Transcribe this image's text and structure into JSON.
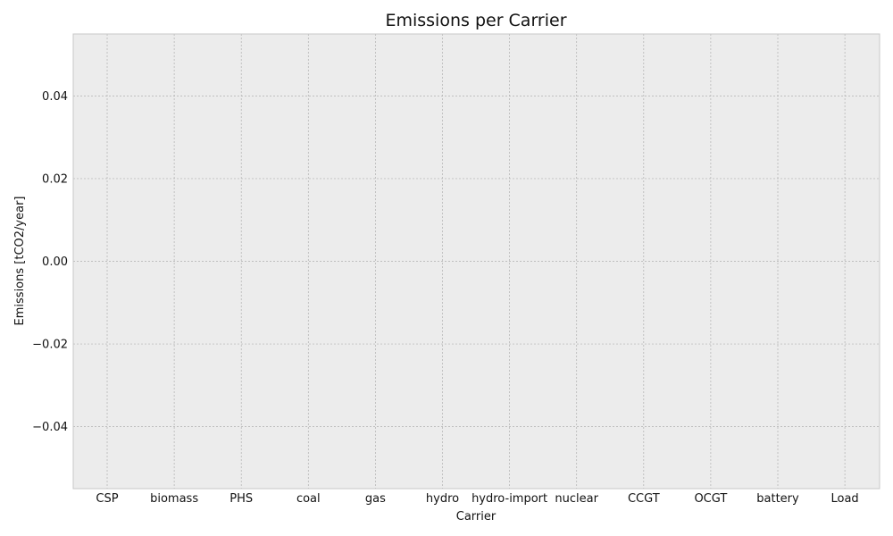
{
  "chart_data": {
    "type": "bar",
    "title": "Emissions per Carrier",
    "xlabel": "Carrier",
    "ylabel": "Emissions [tCO2/year]",
    "categories": [
      "CSP",
      "biomass",
      "PHS",
      "coal",
      "gas",
      "hydro",
      "hydro-import",
      "nuclear",
      "CCGT",
      "OCGT",
      "battery",
      "Load"
    ],
    "values": [
      0,
      0,
      0,
      0,
      0,
      0,
      0,
      0,
      0,
      0,
      0,
      0
    ],
    "ylim": [
      -0.055,
      0.055
    ],
    "yticks": [
      -0.04,
      -0.02,
      0.0,
      0.02,
      0.04
    ],
    "ytick_labels": [
      "−0.04",
      "−0.02",
      "0.00",
      "0.02",
      "0.04"
    ],
    "grid": true,
    "legend": "none"
  },
  "colors": {
    "plot_background": "#ececec",
    "grid": "#b0b0b0",
    "frame": "#c8c8c8",
    "text": "#111111"
  }
}
